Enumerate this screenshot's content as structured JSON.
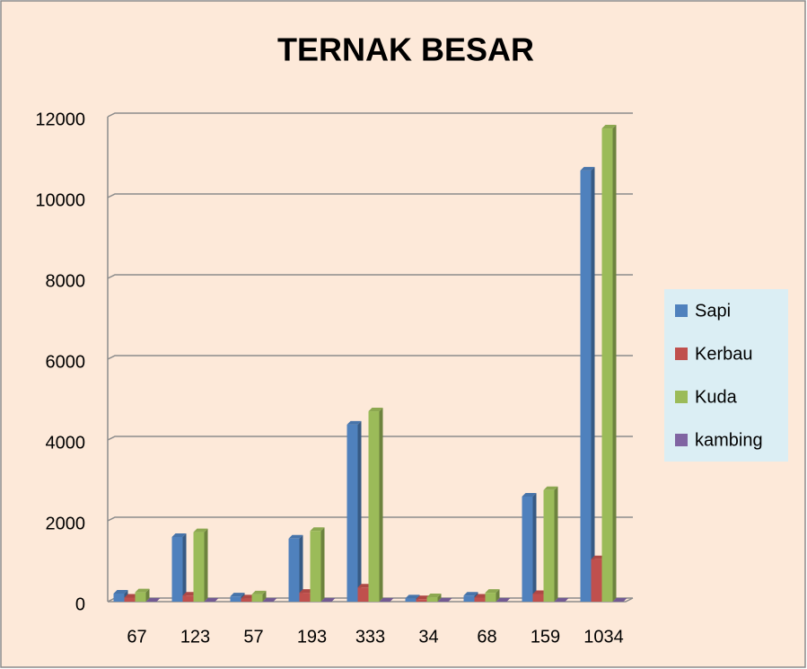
{
  "chart_data": {
    "type": "bar",
    "title": "TERNAK BESAR",
    "categories": [
      "67",
      "123",
      "57",
      "193",
      "333",
      "34",
      "68",
      "159",
      "1034"
    ],
    "series": [
      {
        "name": "Sapi",
        "color": "#4f81bd",
        "values": [
          200,
          1600,
          130,
          1560,
          4380,
          80,
          150,
          2600,
          10670
        ]
      },
      {
        "name": "Kerbau",
        "color": "#c0504d",
        "values": [
          100,
          150,
          80,
          220,
          350,
          60,
          100,
          190,
          1050
        ]
      },
      {
        "name": "Kuda",
        "color": "#9bbb59",
        "values": [
          230,
          1720,
          180,
          1750,
          4710,
          110,
          220,
          2760,
          11710
        ]
      },
      {
        "name": "kambing",
        "color": "#8064a2",
        "values": [
          0,
          0,
          0,
          0,
          0,
          0,
          0,
          0,
          0
        ]
      }
    ],
    "ylim": [
      0,
      12000
    ],
    "yticks": [
      0,
      2000,
      4000,
      6000,
      8000,
      10000,
      12000
    ],
    "grid": true,
    "legend": "right"
  }
}
